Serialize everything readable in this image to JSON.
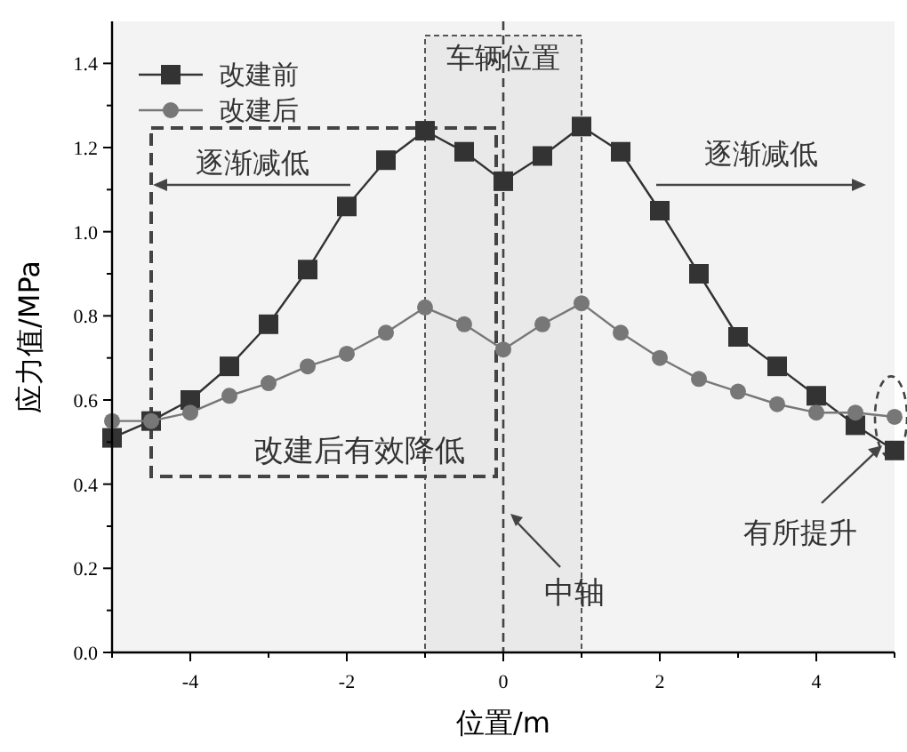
{
  "chart_data": {
    "type": "line",
    "xlabel": "位置/m",
    "ylabel": "应力值/MPa",
    "x": [
      -5,
      -4.5,
      -4,
      -3.5,
      -3,
      -2.5,
      -2,
      -1.5,
      -1,
      -0.5,
      0,
      0.5,
      1,
      1.5,
      2,
      2.5,
      3,
      3.5,
      4,
      4.5,
      5
    ],
    "series": [
      {
        "name": "改建前",
        "color": "#333333",
        "marker": "square",
        "values": [
          0.51,
          0.55,
          0.6,
          0.68,
          0.78,
          0.91,
          1.06,
          1.17,
          1.24,
          1.19,
          1.12,
          1.18,
          1.25,
          1.19,
          1.05,
          0.9,
          0.75,
          0.68,
          0.61,
          0.54,
          0.48
        ]
      },
      {
        "name": "改建后",
        "color": "#777777",
        "marker": "circle",
        "values": [
          0.55,
          0.55,
          0.57,
          0.61,
          0.64,
          0.68,
          0.71,
          0.76,
          0.82,
          0.78,
          0.72,
          0.78,
          0.83,
          0.76,
          0.7,
          0.65,
          0.62,
          0.59,
          0.57,
          0.57,
          0.56
        ]
      }
    ],
    "xlim": [
      -5,
      5
    ],
    "xticks": [
      -4,
      -2,
      0,
      2,
      4
    ],
    "ylim": [
      0,
      1.5
    ],
    "yticks": [
      {
        "value": 0,
        "label": "0.0"
      },
      {
        "value": 0.2,
        "label": "0.2"
      },
      {
        "value": 0.4,
        "label": "0.4"
      },
      {
        "value": 0.6,
        "label": "0.6"
      },
      {
        "value": 0.8,
        "label": "0.8"
      },
      {
        "value": 1,
        "label": "1.0"
      },
      {
        "value": 1.2,
        "label": "1.2"
      },
      {
        "value": 1.4,
        "label": "1.4"
      }
    ],
    "bands": [
      {
        "axis": "x",
        "from": -1,
        "to": 1,
        "label": "车辆位置",
        "color": "#e9e9e9"
      }
    ],
    "ref_lines": [
      {
        "axis": "x",
        "value": 0,
        "label": "中轴",
        "line_style": "dashed"
      }
    ],
    "annotations": [
      "逐渐减低",
      "逐渐减低",
      "改建后有效降低",
      {
        "text": "有所提升",
        "x": 5,
        "y": 0.5
      }
    ],
    "legend": "top left",
    "grid": false,
    "line_style": "solid"
  }
}
